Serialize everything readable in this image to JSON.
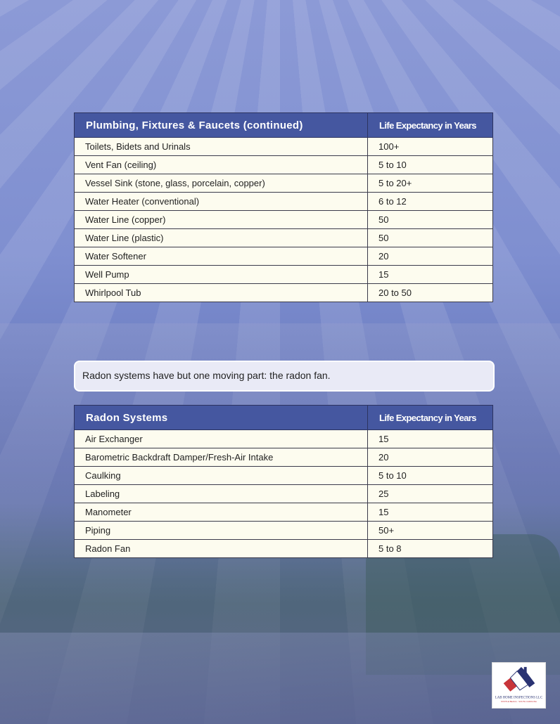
{
  "plumbing": {
    "header": {
      "item": "Plumbing, Fixtures & Faucets (continued)",
      "life": "Life Expectancy in Years"
    },
    "rows": [
      {
        "item": "Toilets, Bidets and Urinals",
        "life": "100+"
      },
      {
        "item": "Vent Fan (ceiling)",
        "life": "5 to 10"
      },
      {
        "item": "Vessel Sink (stone, glass, porcelain, copper)",
        "life": "5 to 20+"
      },
      {
        "item": "Water Heater (conventional)",
        "life": "6 to 12"
      },
      {
        "item": "Water Line (copper)",
        "life": "50"
      },
      {
        "item": "Water Line (plastic)",
        "life": "50"
      },
      {
        "item": "Water Softener",
        "life": "20"
      },
      {
        "item": "Well Pump",
        "life": "15"
      },
      {
        "item": "Whirlpool Tub",
        "life": "20 to 50"
      }
    ]
  },
  "callout": "Radon systems have but one moving part:  the radon fan.",
  "radon": {
    "header": {
      "item": "Radon Systems",
      "life": "Life Expectancy in Years"
    },
    "rows": [
      {
        "item": "Air Exchanger",
        "life": "15"
      },
      {
        "item": "Barometric Backdraft Damper/Fresh-Air Intake",
        "life": "20"
      },
      {
        "item": "Caulking",
        "life": "5 to 10"
      },
      {
        "item": "Labeling",
        "life": "25"
      },
      {
        "item": "Manometer",
        "life": "15"
      },
      {
        "item": "Piping",
        "life": "50+"
      },
      {
        "item": "Radon Fan",
        "life": "5 to 8"
      }
    ]
  },
  "logo": {
    "name": "LAB HOME INSPECTIONS LLC",
    "tagline": "MYRTLE BEACH · SOUTH CAROLINA"
  },
  "colors": {
    "header": "#4557a0",
    "cell": "#fdfcef",
    "logo_red": "#c8353a",
    "logo_navy": "#2a3372"
  }
}
